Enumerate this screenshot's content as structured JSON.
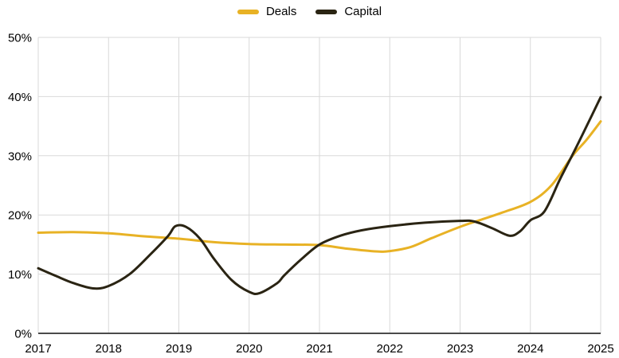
{
  "legend": {
    "items": [
      {
        "label": "Deals"
      },
      {
        "label": "Capital"
      }
    ]
  },
  "chart_data": {
    "type": "line",
    "title": "",
    "xlabel": "",
    "ylabel": "",
    "categories": [
      2017,
      2018,
      2019,
      2020,
      2021,
      2022,
      2023,
      2024,
      2025
    ],
    "x_tick_labels": [
      "2017",
      "2018",
      "2019",
      "2020",
      "2021",
      "2022",
      "2023",
      "2024",
      "2025"
    ],
    "y_ticks": [
      {
        "value": 0,
        "label": "0%"
      },
      {
        "value": 10,
        "label": "10%"
      },
      {
        "value": 20,
        "label": "20%"
      },
      {
        "value": 30,
        "label": "30%"
      },
      {
        "value": 40,
        "label": "40%"
      },
      {
        "value": 50,
        "label": "50%"
      }
    ],
    "ylim": [
      0,
      50
    ],
    "grid": true,
    "legend_position": "top-center",
    "series": [
      {
        "name": "Deals",
        "color": "#E8B225",
        "values": [
          17,
          17,
          16,
          15,
          15,
          14,
          18,
          22,
          36
        ],
        "render_samples": [
          [
            2017,
            17.0
          ],
          [
            2017.5,
            17.1
          ],
          [
            2018,
            16.9
          ],
          [
            2018.5,
            16.4
          ],
          [
            2019,
            16.0
          ],
          [
            2019.5,
            15.4
          ],
          [
            2020,
            15.1
          ],
          [
            2020.5,
            15.0
          ],
          [
            2021,
            14.9
          ],
          [
            2021.4,
            14.3
          ],
          [
            2021.8,
            13.85
          ],
          [
            2022,
            13.9
          ],
          [
            2022.3,
            14.6
          ],
          [
            2022.6,
            16.1
          ],
          [
            2023,
            18.0
          ],
          [
            2023.3,
            19.2
          ],
          [
            2023.6,
            20.4
          ],
          [
            2024,
            22.2
          ],
          [
            2024.3,
            25.0
          ],
          [
            2024.6,
            30.0
          ],
          [
            2024.8,
            32.7
          ],
          [
            2025,
            35.8
          ]
        ]
      },
      {
        "name": "Capital",
        "color": "#2A2413",
        "values": [
          11,
          8,
          18,
          7,
          15,
          18,
          19,
          19,
          40
        ],
        "render_samples": [
          [
            2017,
            11.0
          ],
          [
            2017.25,
            9.7
          ],
          [
            2017.5,
            8.5
          ],
          [
            2017.78,
            7.6
          ],
          [
            2018,
            8.0
          ],
          [
            2018.3,
            10.0
          ],
          [
            2018.6,
            13.4
          ],
          [
            2018.85,
            16.5
          ],
          [
            2018.95,
            18.1
          ],
          [
            2019.1,
            18.0
          ],
          [
            2019.3,
            16.0
          ],
          [
            2019.5,
            12.6
          ],
          [
            2019.75,
            9.0
          ],
          [
            2020,
            7.0
          ],
          [
            2020.15,
            6.8
          ],
          [
            2020.4,
            8.5
          ],
          [
            2020.5,
            9.8
          ],
          [
            2020.75,
            12.6
          ],
          [
            2021,
            15.0
          ],
          [
            2021.3,
            16.5
          ],
          [
            2021.6,
            17.4
          ],
          [
            2022,
            18.1
          ],
          [
            2022.5,
            18.7
          ],
          [
            2023,
            19.0
          ],
          [
            2023.2,
            18.9
          ],
          [
            2023.45,
            17.8
          ],
          [
            2023.7,
            16.5
          ],
          [
            2023.85,
            17.2
          ],
          [
            2024,
            19.1
          ],
          [
            2024.2,
            20.6
          ],
          [
            2024.42,
            26.0
          ],
          [
            2024.6,
            30.2
          ],
          [
            2024.8,
            35.0
          ],
          [
            2025,
            39.9
          ]
        ]
      }
    ],
    "colors": {
      "gridline": "#D9D9D9",
      "axis": "#4A4A4A",
      "text": "#000000",
      "background": "#FFFFFF"
    }
  }
}
